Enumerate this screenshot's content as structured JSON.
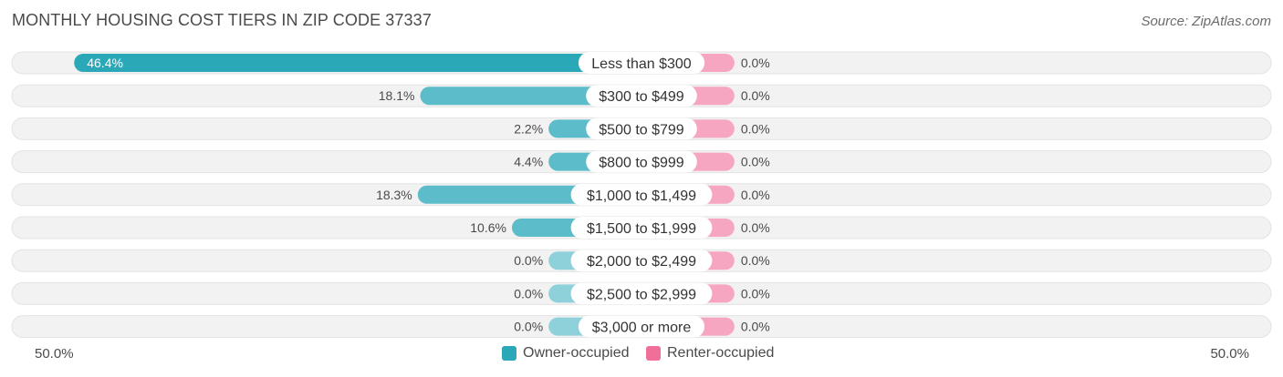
{
  "title": "MONTHLY HOUSING COST TIERS IN ZIP CODE 37337",
  "source": "Source: ZipAtlas.com",
  "colors": {
    "owner": "#5cbcc9",
    "owner_highlight": "#2aa8b8",
    "renter": "#f6a6c0",
    "renter_swatch": "#ef6f99",
    "track": "#f1f1f1"
  },
  "legend": {
    "owner_label": "Owner-occupied",
    "renter_label": "Renter-occupied"
  },
  "axis": {
    "left_label": "50.0%",
    "right_label": "50.0%"
  },
  "chart_data": {
    "type": "bar",
    "orientation": "diverging-horizontal",
    "categories": [
      "Less than $300",
      "$300 to $499",
      "$500 to $799",
      "$800 to $999",
      "$1,000 to $1,499",
      "$1,500 to $1,999",
      "$2,000 to $2,499",
      "$2,500 to $2,999",
      "$3,000 or more"
    ],
    "series": [
      {
        "name": "Owner-occupied",
        "values": [
          46.4,
          18.1,
          2.2,
          4.4,
          18.3,
          10.6,
          0.0,
          0.0,
          0.0
        ],
        "labels": [
          "46.4%",
          "18.1%",
          "2.2%",
          "4.4%",
          "18.3%",
          "10.6%",
          "0.0%",
          "0.0%",
          "0.0%"
        ]
      },
      {
        "name": "Renter-occupied",
        "values": [
          0.0,
          0.0,
          0.0,
          0.0,
          0.0,
          0.0,
          0.0,
          0.0,
          0.0
        ],
        "labels": [
          "0.0%",
          "0.0%",
          "0.0%",
          "0.0%",
          "0.0%",
          "0.0%",
          "0.0%",
          "0.0%",
          "0.0%"
        ]
      }
    ],
    "xlim": [
      -50,
      50
    ],
    "legend_position": "bottom-center"
  }
}
